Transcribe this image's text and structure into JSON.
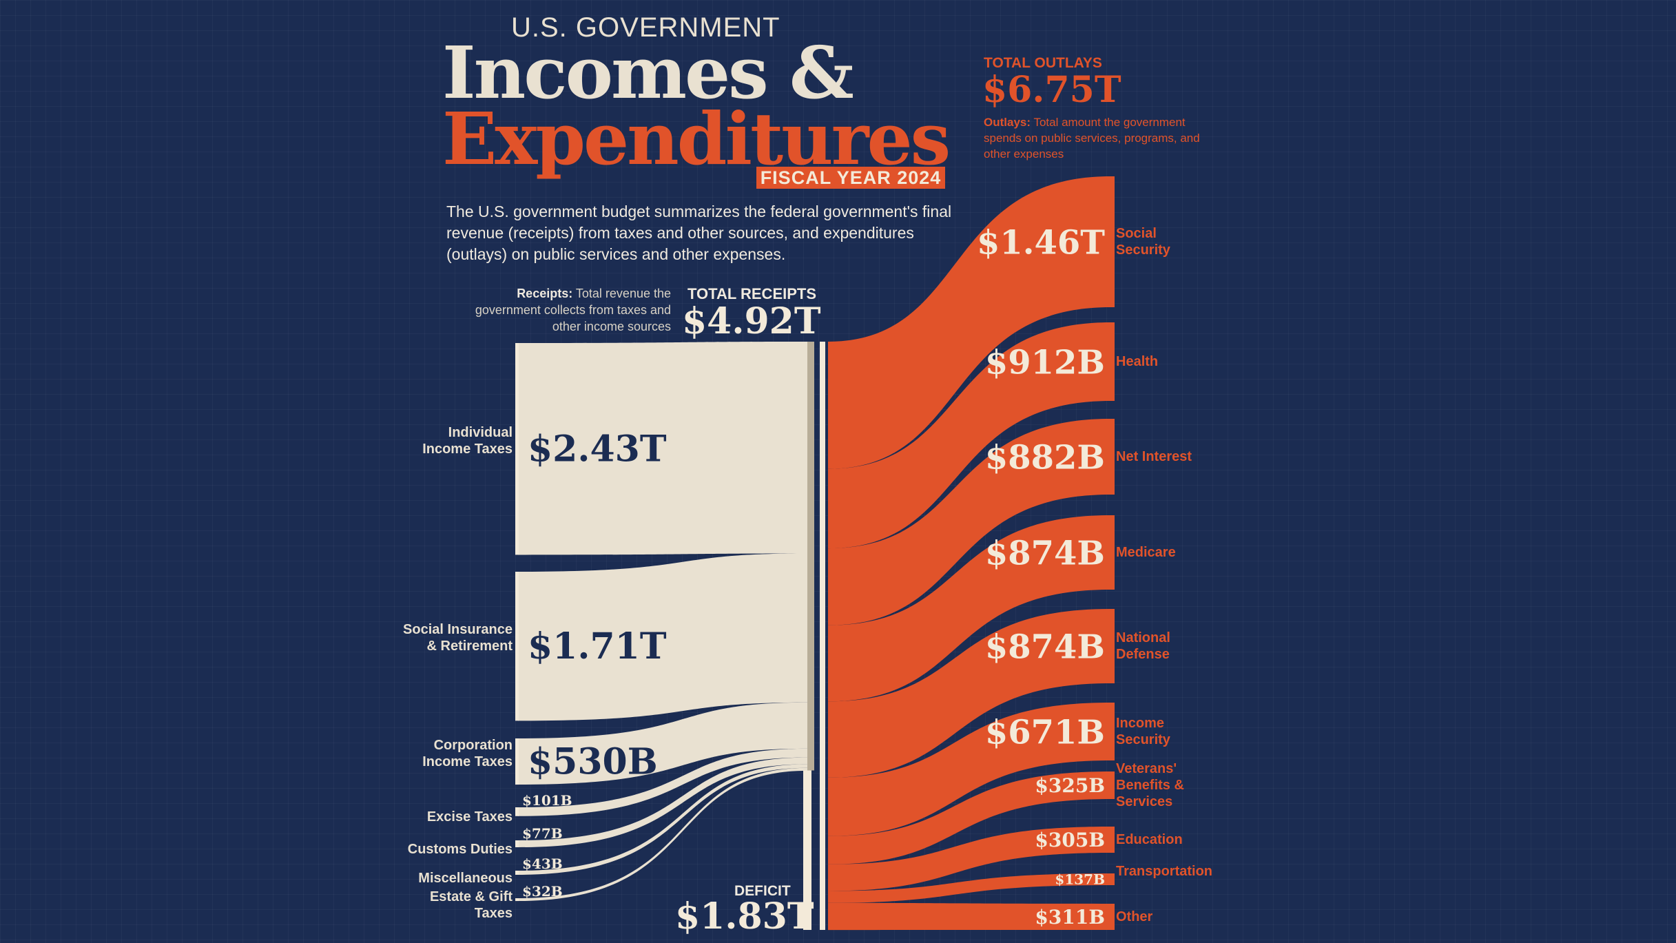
{
  "header": {
    "supertitle": "U.S. GOVERNMENT",
    "title_line1": "Incomes &",
    "title_line2": "Expenditures",
    "fiscal_year": "FISCAL YEAR 2024",
    "intro": "The U.S. government budget summarizes the federal government's final revenue (receipts) from taxes and other sources, and expenditures (outlays) on public services and other expenses."
  },
  "receipts_note": {
    "term": "Receipts:",
    "text": "Total revenue the government collects from taxes and other income sources"
  },
  "outlays_note": {
    "term": "Outlays:",
    "text": "Total amount the government spends on public services, programs, and other expenses"
  },
  "totals": {
    "receipts_label": "TOTAL RECEIPTS",
    "receipts_value": "$4.92T",
    "outlays_label": "TOTAL OUTLAYS",
    "outlays_value": "$6.75T",
    "deficit_label": "DEFICIT",
    "deficit_value": "$1.83T"
  },
  "colors": {
    "background": "#1b2c52",
    "receipts": "#e9e1d1",
    "outlays": "#e1532a",
    "dark_text": "#1b2c52"
  },
  "chart_data": {
    "type": "sankey",
    "units": "USD billions",
    "receipts": [
      {
        "name": "Individual Income Taxes",
        "display": "$2.43T",
        "value": 2430
      },
      {
        "name": "Social Insurance & Retirement",
        "display": "$1.71T",
        "value": 1710
      },
      {
        "name": "Corporation Income Taxes",
        "display": "$530B",
        "value": 530
      },
      {
        "name": "Excise Taxes",
        "display": "$101B",
        "value": 101
      },
      {
        "name": "Customs Duties",
        "display": "$77B",
        "value": 77
      },
      {
        "name": "Miscellaneous",
        "display": "$43B",
        "value": 43
      },
      {
        "name": "Estate & Gift Taxes",
        "display": "$32B",
        "value": 32
      }
    ],
    "outlays": [
      {
        "name": "Social Security",
        "display": "$1.46T",
        "value": 1460
      },
      {
        "name": "Health",
        "display": "$912B",
        "value": 912
      },
      {
        "name": "Net Interest",
        "display": "$882B",
        "value": 882
      },
      {
        "name": "Medicare",
        "display": "$874B",
        "value": 874
      },
      {
        "name": "National Defense",
        "display": "$874B",
        "value": 874
      },
      {
        "name": "Income Security",
        "display": "$671B",
        "value": 671
      },
      {
        "name": "Veterans' Benefits & Services",
        "display": "$325B",
        "value": 325
      },
      {
        "name": "Education",
        "display": "$305B",
        "value": 305
      },
      {
        "name": "Transportation",
        "display": "$137B",
        "value": 137
      },
      {
        "name": "Other",
        "display": "$311B",
        "value": 311
      }
    ],
    "total_receipts": 4920,
    "total_outlays": 6750,
    "deficit": 1830
  }
}
